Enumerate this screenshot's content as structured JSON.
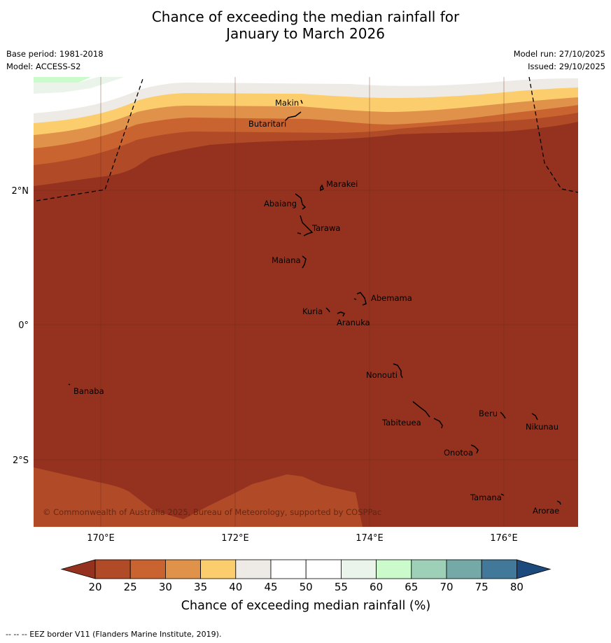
{
  "title": {
    "line1": "Chance of exceeding the median rainfall for",
    "line2": "January to March 2026"
  },
  "meta": {
    "base_period": "Base period: 1981-2018",
    "model": "Model: ACCESS-S2",
    "model_run": "Model run: 27/10/2025",
    "issued": "Issued: 29/10/2025"
  },
  "map": {
    "lat_labels": [
      "2°N",
      "0°",
      "2°S"
    ],
    "lon_labels": [
      "170°E",
      "172°E",
      "174°E",
      "176°E"
    ],
    "copyright": "© Commonwealth of Australia 2025, Bureau of Meteorology, supported by COSPPac",
    "places": [
      {
        "name": "Makin"
      },
      {
        "name": "Butaritari"
      },
      {
        "name": "Marakei"
      },
      {
        "name": "Abaiang"
      },
      {
        "name": "Tarawa"
      },
      {
        "name": "Maiana"
      },
      {
        "name": "Abemama"
      },
      {
        "name": "Kuria"
      },
      {
        "name": "Aranuka"
      },
      {
        "name": "Nonouti"
      },
      {
        "name": "Banaba"
      },
      {
        "name": "Beru"
      },
      {
        "name": "Tabiteuea"
      },
      {
        "name": "Nikunau"
      },
      {
        "name": "Onotoa"
      },
      {
        "name": "Tamana"
      },
      {
        "name": "Arorae"
      }
    ]
  },
  "legend": {
    "label": "Chance of exceeding median rainfall (%)",
    "ticks": [
      "20",
      "25",
      "30",
      "35",
      "40",
      "45",
      "50",
      "55",
      "60",
      "65",
      "70",
      "75",
      "80"
    ],
    "colors": {
      "below20": "#95321f",
      "c20_25": "#b04a27",
      "c25_30": "#c96330",
      "c30_35": "#e0924a",
      "c35_40": "#fccd6c",
      "c40_45": "#eeebe6",
      "c45_50": "#ffffff",
      "c50_55": "#ffffff",
      "c55_60": "#eaf4ea",
      "c60_65": "#cbfacb",
      "c65_70": "#9ed0b8",
      "c70_75": "#74a9a8",
      "c75_80": "#427899",
      "above80": "#1d4a7d"
    }
  },
  "footer": "--  --  -- EEZ border V11 (Flanders Marine Institute, 2019)."
}
